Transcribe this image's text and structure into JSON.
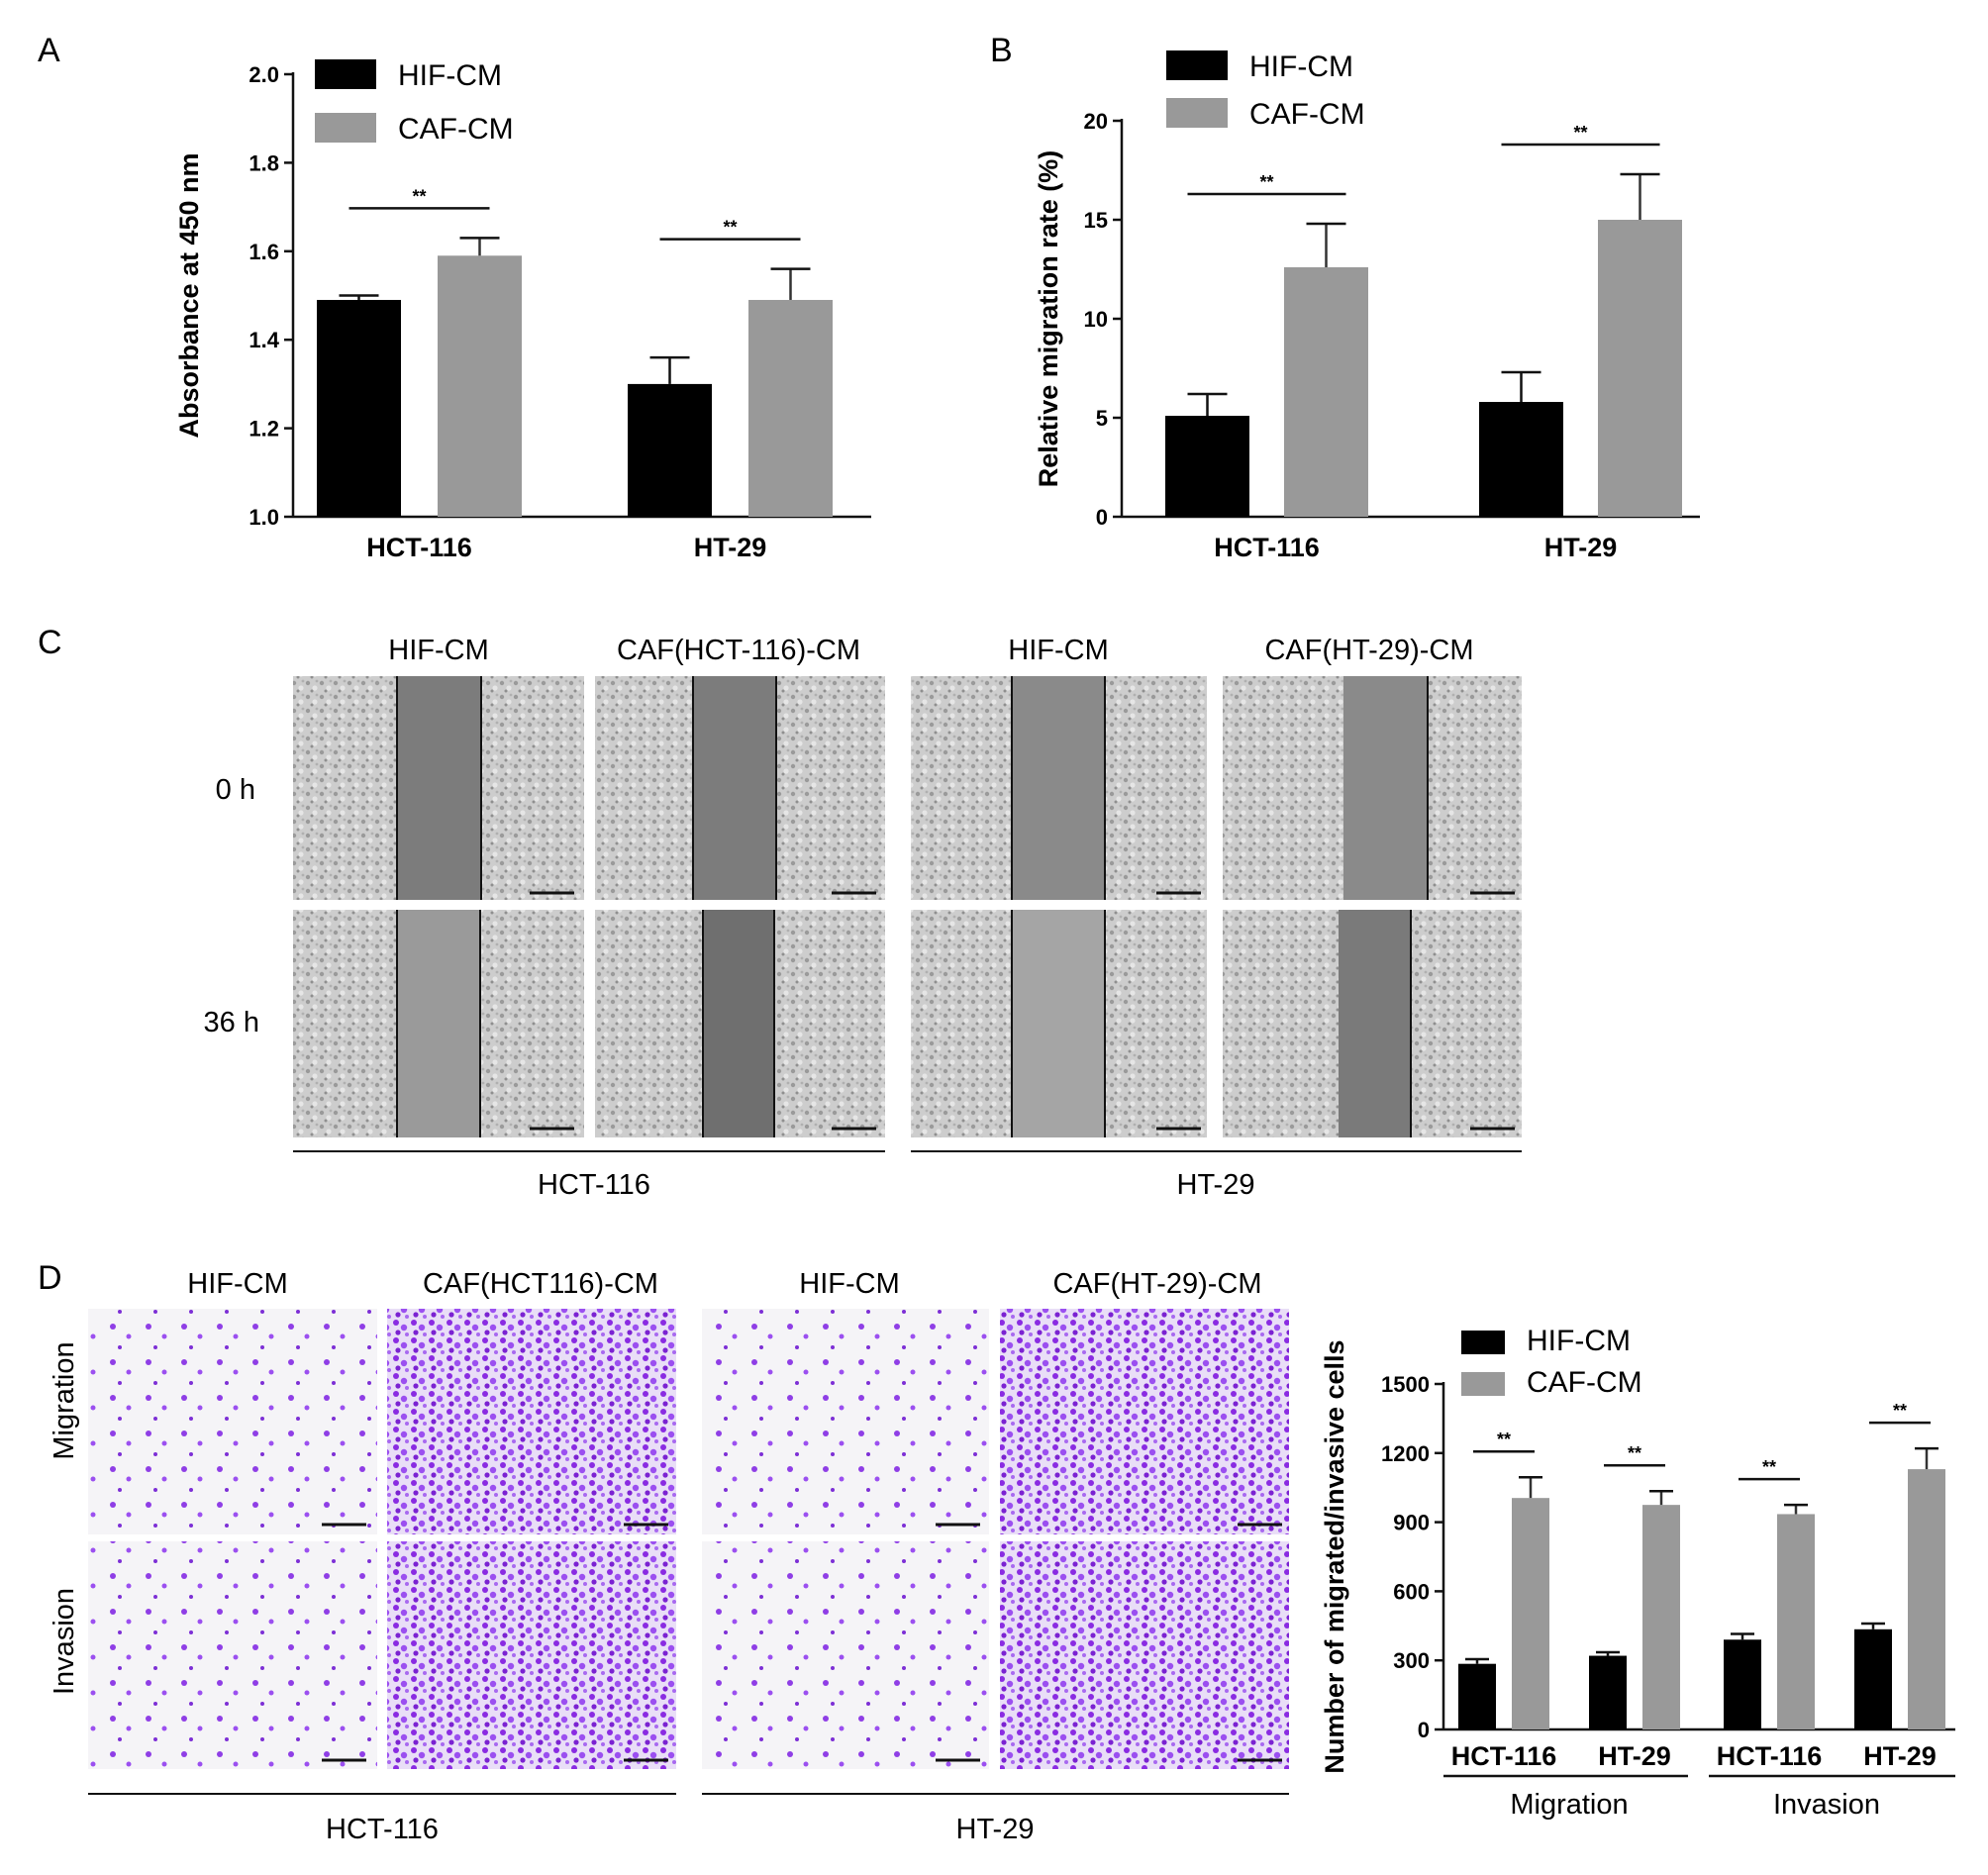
{
  "panels": {
    "A": "A",
    "B": "B",
    "C": "C",
    "D": "D"
  },
  "colors": {
    "hif": "#000000",
    "caf": "#999999",
    "scratch_bg": "#c9c9c9",
    "scratch_gap": "#7d7d7d",
    "transwell_bg": "#f4f4f6",
    "transwell_stain": "#8a2be2"
  },
  "chart_data": [
    {
      "id": "A",
      "type": "bar",
      "ylabel": "Absorbance at 450 nm",
      "categories": [
        "HCT-116",
        "HT-29"
      ],
      "ylim": [
        1.0,
        2.0
      ],
      "yticks": [
        "1.0",
        "1.2",
        "1.4",
        "1.6",
        "1.8",
        "2.0"
      ],
      "legend": [
        "HIF-CM",
        "CAF-CM"
      ],
      "legend_position": "top-left",
      "series": [
        {
          "name": "HIF-CM",
          "values": [
            1.49,
            1.3
          ],
          "errors": [
            0.01,
            0.06
          ]
        },
        {
          "name": "CAF-CM",
          "values": [
            1.59,
            1.49
          ],
          "errors": [
            0.04,
            0.07
          ]
        }
      ],
      "significance": [
        "**",
        "**"
      ]
    },
    {
      "id": "B",
      "type": "bar",
      "ylabel": "Relative migration rate (%)",
      "categories": [
        "HCT-116",
        "HT-29"
      ],
      "ylim": [
        0,
        20
      ],
      "yticks": [
        "0",
        "5",
        "10",
        "15",
        "20"
      ],
      "legend": [
        "HIF-CM",
        "CAF-CM"
      ],
      "legend_position": "top-left",
      "series": [
        {
          "name": "HIF-CM",
          "values": [
            5.1,
            5.8
          ],
          "errors": [
            1.1,
            1.5
          ]
        },
        {
          "name": "CAF-CM",
          "values": [
            12.6,
            15.0
          ],
          "errors": [
            2.2,
            2.3
          ]
        }
      ],
      "significance": [
        "**",
        "**"
      ]
    },
    {
      "id": "D",
      "type": "bar",
      "ylabel": "Number of migrated/invasive cells",
      "categories": [
        "HCT-116",
        "HT-29",
        "HCT-116",
        "HT-29"
      ],
      "groups": [
        "Migration",
        "Invasion"
      ],
      "ylim": [
        0,
        1500
      ],
      "yticks": [
        "0",
        "300",
        "600",
        "900",
        "1200",
        "1500"
      ],
      "legend": [
        "HIF-CM",
        "CAF-CM"
      ],
      "legend_position": "top-left",
      "series": [
        {
          "name": "HIF-CM",
          "values": [
            285,
            320,
            390,
            435
          ],
          "errors": [
            20,
            15,
            25,
            25
          ]
        },
        {
          "name": "CAF-CM",
          "values": [
            1005,
            975,
            935,
            1130
          ],
          "errors": [
            90,
            60,
            40,
            90
          ]
        }
      ],
      "significance": [
        "**",
        "**",
        "**",
        "**"
      ]
    }
  ],
  "scratch_assay": {
    "columns": [
      "HIF-CM",
      "CAF(HCT-116)-CM",
      "HIF-CM",
      "CAF(HT-29)-CM"
    ],
    "rows": [
      "0 h",
      "36 h"
    ],
    "groups": [
      "HCT-116",
      "HT-29"
    ]
  },
  "transwell_assay": {
    "columns": [
      "HIF-CM",
      "CAF(HCT116)-CM",
      "HIF-CM",
      "CAF(HT-29)-CM"
    ],
    "rows": [
      "Migration",
      "Invasion"
    ],
    "groups": [
      "HCT-116",
      "HT-29"
    ]
  }
}
